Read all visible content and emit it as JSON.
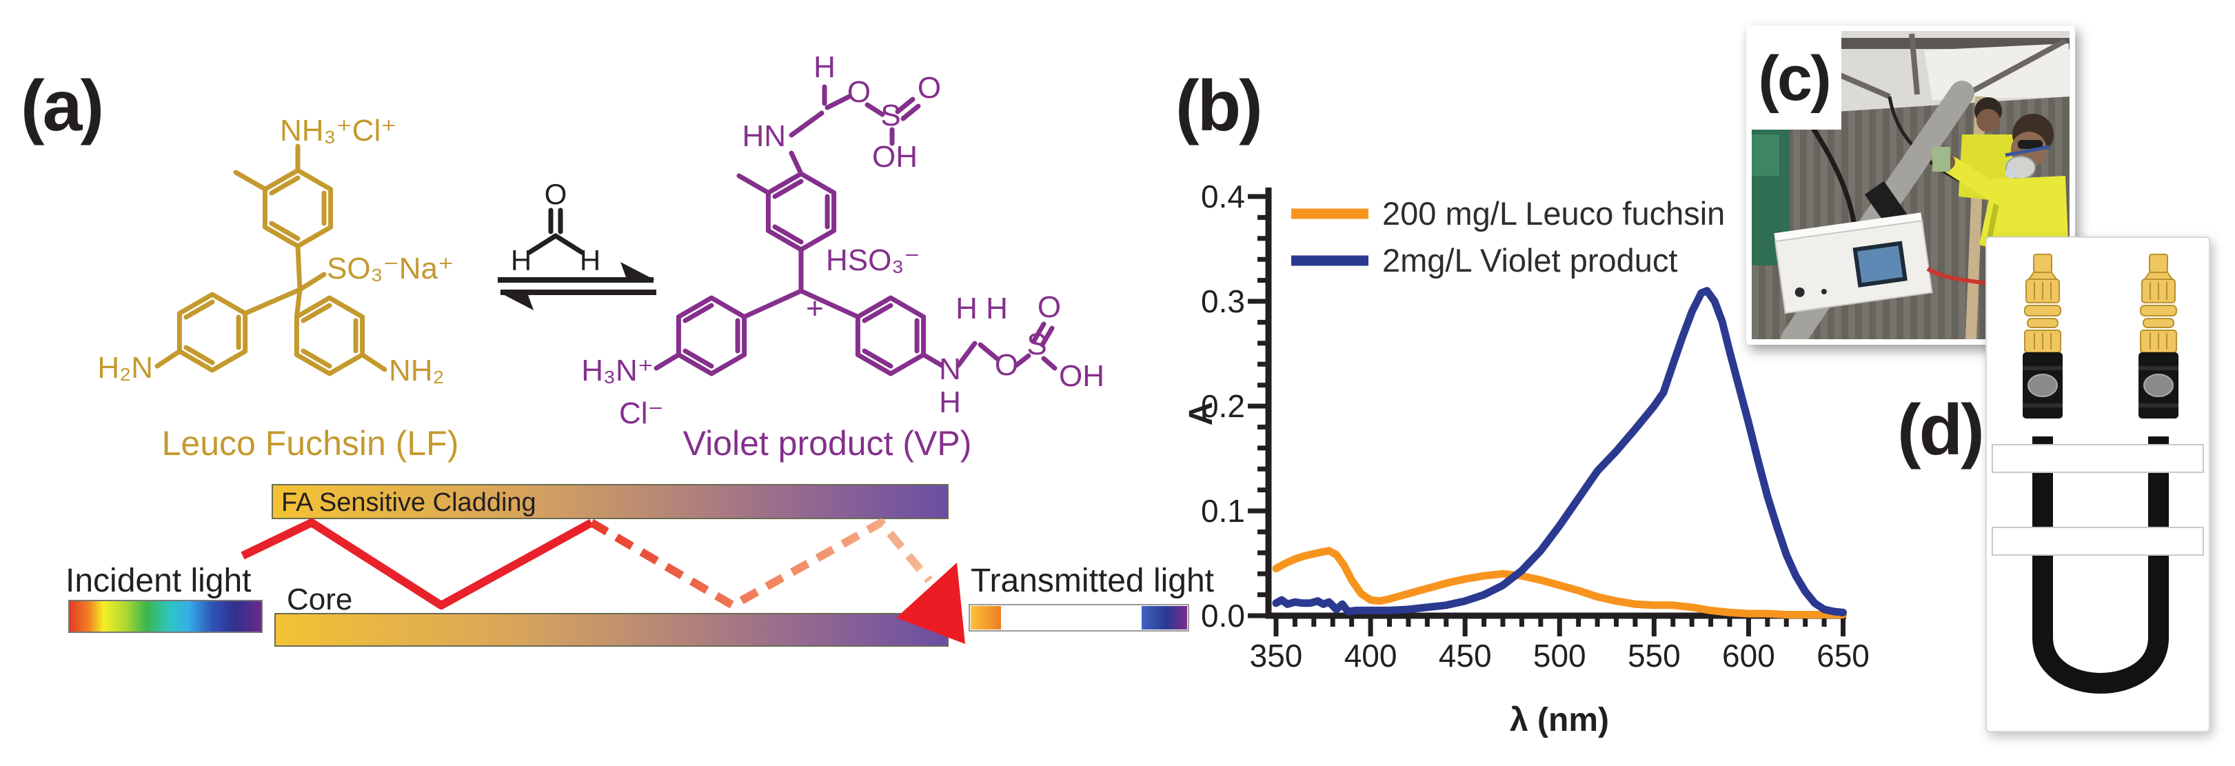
{
  "figure": {
    "panel_a_label": "(a)",
    "panel_b_label": "(b)",
    "panel_c_label": "(c)",
    "panel_d_label": "(d)"
  },
  "panel_a": {
    "leuco_fuchsin": {
      "name": "Leuco Fuchsin (LF)",
      "color": "#C49A2E",
      "amine_top": "NH₃⁺Cl⁺",
      "sulfonate": "SO₃⁻Na⁺",
      "amine_left": "H₂N",
      "amine_right": "NH₂"
    },
    "formaldehyde": {
      "o": "O",
      "h_left": "H",
      "h_right": "H"
    },
    "violet_product": {
      "name": "Violet product (VP)",
      "color": "#84308C",
      "hn": "HN",
      "h_top": "H",
      "o_ether_top": "O",
      "s_top": "S",
      "o_dbl_top": "O",
      "oh_top": "OH",
      "hso3": "HSO₃⁻",
      "charge": "+",
      "h3n": "H₃N⁺",
      "cl": "Cl⁻",
      "n_bottom": "N",
      "h_under_n": "H",
      "h_gem_1": "H",
      "h_gem_2": "H",
      "o_ether_bottom": "O",
      "s_bottom": "S",
      "o_dbl_bottom": "O",
      "oh_bottom": "OH"
    },
    "fiber": {
      "cladding_label": "FA Sensitive Cladding",
      "core_label": "Core",
      "incident_label": "Incident light",
      "transmitted_label": "Transmitted light",
      "cladding_gradient": [
        "#F4C233",
        "#6B4EA4"
      ],
      "light_ray_color": "#E8212A",
      "arrow_color": "#EC1C24"
    }
  },
  "chart_data": {
    "type": "line",
    "title": "",
    "xlabel": "λ (nm)",
    "ylabel": "A",
    "xlim": [
      350,
      650
    ],
    "ylim": [
      0,
      0.4
    ],
    "x_major_ticks": [
      350,
      400,
      450,
      500,
      550,
      600,
      650
    ],
    "x_minor_step": 10,
    "y_major_ticks": [
      0.0,
      0.1,
      0.2,
      0.3,
      0.4
    ],
    "y_minor_step": 0.02,
    "grid": false,
    "legend_position": "top-left",
    "series": [
      {
        "name": "200 mg/L Leuco fuchsin",
        "color": "#F7941E",
        "points": [
          [
            350,
            0.045
          ],
          [
            355,
            0.05
          ],
          [
            360,
            0.054
          ],
          [
            365,
            0.057
          ],
          [
            370,
            0.059
          ],
          [
            375,
            0.061
          ],
          [
            378,
            0.062
          ],
          [
            382,
            0.058
          ],
          [
            386,
            0.048
          ],
          [
            390,
            0.034
          ],
          [
            395,
            0.021
          ],
          [
            400,
            0.015
          ],
          [
            405,
            0.014
          ],
          [
            410,
            0.016
          ],
          [
            420,
            0.021
          ],
          [
            430,
            0.026
          ],
          [
            440,
            0.031
          ],
          [
            450,
            0.035
          ],
          [
            460,
            0.038
          ],
          [
            470,
            0.04
          ],
          [
            480,
            0.038
          ],
          [
            490,
            0.034
          ],
          [
            500,
            0.029
          ],
          [
            510,
            0.024
          ],
          [
            520,
            0.018
          ],
          [
            530,
            0.014
          ],
          [
            540,
            0.011
          ],
          [
            550,
            0.01
          ],
          [
            560,
            0.01
          ],
          [
            570,
            0.008
          ],
          [
            580,
            0.005
          ],
          [
            590,
            0.003
          ],
          [
            600,
            0.002
          ],
          [
            610,
            0.002
          ],
          [
            620,
            0.001
          ],
          [
            630,
            0.001
          ],
          [
            640,
            0.001
          ],
          [
            650,
            0.001
          ]
        ]
      },
      {
        "name": "2mg/L Violet product",
        "color": "#2B3990",
        "points": [
          [
            350,
            0.012
          ],
          [
            353,
            0.015
          ],
          [
            356,
            0.011
          ],
          [
            360,
            0.013
          ],
          [
            364,
            0.012
          ],
          [
            368,
            0.012
          ],
          [
            372,
            0.014
          ],
          [
            375,
            0.011
          ],
          [
            378,
            0.013
          ],
          [
            382,
            0.006
          ],
          [
            385,
            0.011
          ],
          [
            388,
            0.004
          ],
          [
            392,
            0.005
          ],
          [
            396,
            0.005
          ],
          [
            400,
            0.005
          ],
          [
            410,
            0.005
          ],
          [
            420,
            0.006
          ],
          [
            430,
            0.008
          ],
          [
            440,
            0.01
          ],
          [
            450,
            0.014
          ],
          [
            460,
            0.02
          ],
          [
            470,
            0.029
          ],
          [
            480,
            0.043
          ],
          [
            490,
            0.062
          ],
          [
            500,
            0.086
          ],
          [
            510,
            0.112
          ],
          [
            515,
            0.125
          ],
          [
            520,
            0.138
          ],
          [
            530,
            0.157
          ],
          [
            540,
            0.178
          ],
          [
            550,
            0.2
          ],
          [
            555,
            0.213
          ],
          [
            560,
            0.24
          ],
          [
            565,
            0.266
          ],
          [
            570,
            0.29
          ],
          [
            575,
            0.308
          ],
          [
            578,
            0.31
          ],
          [
            582,
            0.3
          ],
          [
            586,
            0.281
          ],
          [
            590,
            0.252
          ],
          [
            595,
            0.218
          ],
          [
            600,
            0.184
          ],
          [
            605,
            0.148
          ],
          [
            610,
            0.114
          ],
          [
            615,
            0.085
          ],
          [
            620,
            0.058
          ],
          [
            625,
            0.038
          ],
          [
            630,
            0.023
          ],
          [
            635,
            0.012
          ],
          [
            640,
            0.006
          ],
          [
            645,
            0.004
          ],
          [
            650,
            0.003
          ]
        ]
      }
    ]
  }
}
